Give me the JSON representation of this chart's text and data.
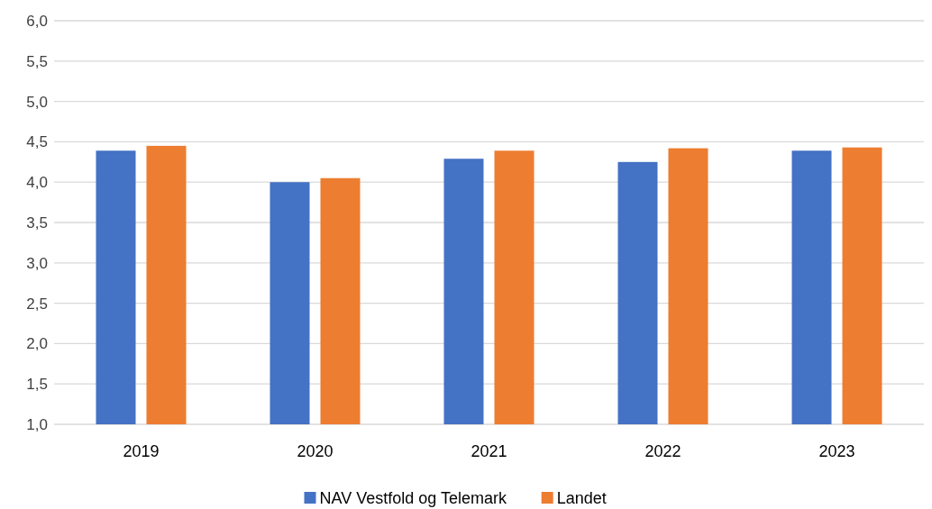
{
  "chart_data": {
    "type": "bar",
    "categories": [
      "2019",
      "2020",
      "2021",
      "2022",
      "2023"
    ],
    "series": [
      {
        "name": "NAV Vestfold og Telemark",
        "color": "#4472c4",
        "values": [
          4.39,
          4.0,
          4.29,
          4.25,
          4.39
        ]
      },
      {
        "name": "Landet",
        "color": "#ed7d31",
        "values": [
          4.45,
          4.05,
          4.39,
          4.42,
          4.43
        ]
      }
    ],
    "ylim": [
      1,
      6
    ],
    "yticks": [
      {
        "value": 1,
        "label": "1,0"
      },
      {
        "value": 1.5,
        "label": "1,5"
      },
      {
        "value": 2,
        "label": "2,0"
      },
      {
        "value": 2.5,
        "label": "2,5"
      },
      {
        "value": 3,
        "label": "3,0"
      },
      {
        "value": 3.5,
        "label": "3,5"
      },
      {
        "value": 4,
        "label": "4,0"
      },
      {
        "value": 4.5,
        "label": "4,5"
      },
      {
        "value": 5,
        "label": "5,0"
      },
      {
        "value": 5.5,
        "label": "5,5"
      },
      {
        "value": 6,
        "label": "6,0"
      }
    ],
    "grid": "y",
    "legend": "bottom"
  }
}
